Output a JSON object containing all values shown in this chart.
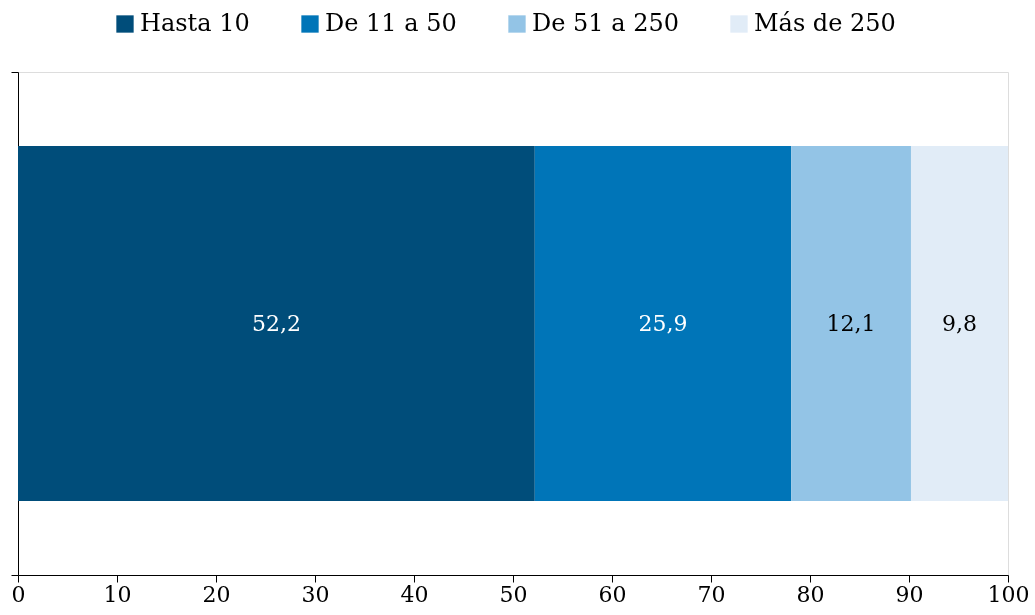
{
  "chart_data": {
    "type": "bar",
    "orientation": "horizontal",
    "stacked": true,
    "categories": [
      null
    ],
    "series": [
      {
        "name": "Hasta 10",
        "color": "#004d7a",
        "values": [
          52.2
        ],
        "value_labels": [
          "52,2"
        ]
      },
      {
        "name": "De 11 a 50",
        "color": "#0075b8",
        "values": [
          25.9
        ],
        "value_labels": [
          "25,9"
        ]
      },
      {
        "name": "De 51 a 250",
        "color": "#93c4e6",
        "values": [
          12.1
        ],
        "value_labels": [
          "12,1"
        ]
      },
      {
        "name": "Más de 250",
        "color": "#e1ecf7",
        "values": [
          9.8
        ],
        "value_labels": [
          "9,8"
        ]
      }
    ],
    "xlim": [
      0,
      100
    ],
    "xticks": [
      0,
      10,
      20,
      30,
      40,
      50,
      60,
      70,
      80,
      90,
      100
    ],
    "legend": "top"
  }
}
